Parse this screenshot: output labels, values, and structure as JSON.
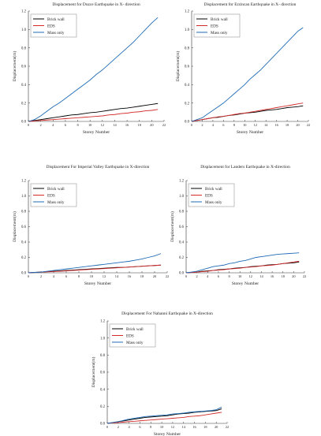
{
  "colors": {
    "Brick wall": "#000000",
    "EDS": "#d42a2a",
    "Mass only": "#1f6bb5"
  },
  "chart_data": [
    {
      "type": "line",
      "title": "Displacement for Duzce Earthquake in X- direction",
      "xlabel": "Storey Number",
      "ylabel": "Displacement(m)",
      "xlim": [
        0,
        22
      ],
      "ylim": [
        0,
        1.2
      ],
      "xticks": [
        0,
        2,
        4,
        6,
        8,
        10,
        12,
        14,
        16,
        18,
        20,
        22
      ],
      "yticks": [
        0,
        0.2,
        0.4,
        0.6,
        0.8,
        1.0,
        1.2
      ],
      "legend": "top-left",
      "grid": false,
      "x": [
        0,
        1,
        2,
        3,
        4,
        5,
        6,
        7,
        8,
        9,
        10,
        11,
        12,
        13,
        14,
        15,
        16,
        17,
        18,
        19,
        20,
        21
      ],
      "series": [
        {
          "name": "Brick wall",
          "values": [
            0,
            0.01,
            0.02,
            0.03,
            0.04,
            0.05,
            0.06,
            0.07,
            0.075,
            0.085,
            0.095,
            0.1,
            0.11,
            0.12,
            0.13,
            0.14,
            0.145,
            0.155,
            0.165,
            0.175,
            0.185,
            0.195
          ]
        },
        {
          "name": "EDS",
          "values": [
            0,
            0.005,
            0.01,
            0.015,
            0.02,
            0.025,
            0.03,
            0.035,
            0.04,
            0.045,
            0.05,
            0.055,
            0.06,
            0.07,
            0.075,
            0.085,
            0.09,
            0.1,
            0.105,
            0.115,
            0.12,
            0.13
          ]
        },
        {
          "name": "Mass only",
          "values": [
            0,
            0.02,
            0.06,
            0.11,
            0.16,
            0.2,
            0.25,
            0.3,
            0.35,
            0.4,
            0.45,
            0.51,
            0.56,
            0.62,
            0.68,
            0.74,
            0.8,
            0.86,
            0.93,
            1.0,
            1.07,
            1.13
          ]
        }
      ]
    },
    {
      "type": "line",
      "title": "Displacement for Erzincan Earthquake in X- direction",
      "xlabel": "Storey Number",
      "ylabel": "Displacement(m)",
      "xlim": [
        0,
        22
      ],
      "ylim": [
        0,
        1.2
      ],
      "xticks": [
        0,
        2,
        4,
        6,
        8,
        10,
        12,
        14,
        16,
        18,
        20,
        22
      ],
      "yticks": [
        0,
        0.2,
        0.4,
        0.6,
        0.8,
        1.0,
        1.2
      ],
      "legend": "top-left",
      "grid": false,
      "x": [
        0,
        1,
        2,
        3,
        4,
        5,
        6,
        7,
        8,
        9,
        10,
        11,
        12,
        13,
        14,
        15,
        16,
        17,
        18,
        19,
        20,
        21
      ],
      "series": [
        {
          "name": "Brick wall",
          "values": [
            0,
            0.01,
            0.02,
            0.03,
            0.04,
            0.045,
            0.055,
            0.065,
            0.07,
            0.08,
            0.09,
            0.095,
            0.1,
            0.11,
            0.12,
            0.125,
            0.13,
            0.14,
            0.15,
            0.155,
            0.16,
            0.17
          ]
        },
        {
          "name": "EDS",
          "values": [
            0,
            0.01,
            0.02,
            0.03,
            0.04,
            0.05,
            0.055,
            0.065,
            0.075,
            0.085,
            0.09,
            0.1,
            0.11,
            0.12,
            0.13,
            0.14,
            0.15,
            0.16,
            0.17,
            0.18,
            0.19,
            0.2
          ]
        },
        {
          "name": "Mass only",
          "values": [
            0,
            0.02,
            0.04,
            0.08,
            0.12,
            0.16,
            0.2,
            0.25,
            0.3,
            0.35,
            0.4,
            0.46,
            0.51,
            0.56,
            0.62,
            0.68,
            0.74,
            0.8,
            0.86,
            0.92,
            0.98,
            1.02
          ]
        }
      ]
    },
    {
      "type": "line",
      "title": "Displacement For Imperial Valley Earthquake in X-direction",
      "xlabel": "Storey Number",
      "ylabel": "Displacement(m)",
      "xlim": [
        0,
        22
      ],
      "ylim": [
        0,
        1.2
      ],
      "xticks": [
        0,
        2,
        4,
        6,
        8,
        10,
        12,
        14,
        16,
        18,
        20,
        22
      ],
      "yticks": [
        0,
        0.2,
        0.4,
        0.6,
        0.8,
        1.0,
        1.2
      ],
      "legend": "top-left",
      "grid": false,
      "x": [
        0,
        1,
        2,
        3,
        4,
        5,
        6,
        7,
        8,
        9,
        10,
        11,
        12,
        13,
        14,
        15,
        16,
        17,
        18,
        19,
        20,
        21
      ],
      "series": [
        {
          "name": "Brick wall",
          "values": [
            0,
            0.005,
            0.01,
            0.015,
            0.02,
            0.025,
            0.03,
            0.035,
            0.04,
            0.045,
            0.05,
            0.055,
            0.06,
            0.065,
            0.07,
            0.07,
            0.075,
            0.08,
            0.085,
            0.09,
            0.095,
            0.1
          ]
        },
        {
          "name": "EDS",
          "values": [
            0,
            0.004,
            0.008,
            0.012,
            0.016,
            0.02,
            0.025,
            0.03,
            0.035,
            0.04,
            0.045,
            0.05,
            0.055,
            0.06,
            0.065,
            0.07,
            0.075,
            0.08,
            0.085,
            0.09,
            0.095,
            0.1
          ]
        },
        {
          "name": "Mass only",
          "values": [
            0,
            0.005,
            0.01,
            0.02,
            0.03,
            0.04,
            0.05,
            0.06,
            0.07,
            0.08,
            0.09,
            0.1,
            0.11,
            0.12,
            0.13,
            0.14,
            0.15,
            0.165,
            0.18,
            0.2,
            0.22,
            0.25
          ]
        }
      ]
    },
    {
      "type": "line",
      "title": "Displacement for Landers Earthquake in X-direction",
      "xlabel": "Storey Number",
      "ylabel": "Displacement(m)",
      "xlim": [
        0,
        22
      ],
      "ylim": [
        0,
        1.2
      ],
      "xticks": [
        0,
        2,
        4,
        6,
        8,
        10,
        12,
        14,
        16,
        18,
        20,
        22
      ],
      "yticks": [
        0,
        0.2,
        0.4,
        0.6,
        0.8,
        1.0,
        1.2
      ],
      "legend": "top-left",
      "grid": false,
      "x": [
        0,
        1,
        2,
        3,
        4,
        5,
        6,
        7,
        8,
        9,
        10,
        11,
        12,
        13,
        14,
        15,
        16,
        17,
        18,
        19,
        20,
        21
      ],
      "series": [
        {
          "name": "Brick wall",
          "values": [
            0,
            0.005,
            0.01,
            0.02,
            0.025,
            0.03,
            0.04,
            0.045,
            0.05,
            0.06,
            0.065,
            0.07,
            0.08,
            0.085,
            0.09,
            0.1,
            0.105,
            0.11,
            0.12,
            0.125,
            0.13,
            0.14
          ]
        },
        {
          "name": "EDS",
          "values": [
            0,
            0.005,
            0.01,
            0.015,
            0.02,
            0.03,
            0.035,
            0.04,
            0.05,
            0.055,
            0.06,
            0.07,
            0.075,
            0.08,
            0.09,
            0.095,
            0.1,
            0.11,
            0.12,
            0.13,
            0.14,
            0.15
          ]
        },
        {
          "name": "Mass only",
          "values": [
            0,
            0.01,
            0.02,
            0.04,
            0.06,
            0.08,
            0.09,
            0.1,
            0.12,
            0.13,
            0.15,
            0.16,
            0.18,
            0.2,
            0.21,
            0.22,
            0.23,
            0.24,
            0.245,
            0.25,
            0.255,
            0.26
          ]
        }
      ]
    },
    {
      "type": "line",
      "title": "Displacement For Nahanni Earthquake in X-direction",
      "xlabel": "Storey Number",
      "ylabel": "Displacement(m)",
      "xlim": [
        0,
        22
      ],
      "ylim": [
        0,
        1.2
      ],
      "xticks": [
        0,
        2,
        4,
        6,
        8,
        10,
        12,
        14,
        16,
        18,
        20,
        22
      ],
      "yticks": [
        0,
        0.2,
        0.4,
        0.6,
        0.8,
        1.0,
        1.2
      ],
      "legend": "top-left",
      "grid": false,
      "x": [
        0,
        1,
        2,
        3,
        4,
        5,
        6,
        7,
        8,
        9,
        10,
        11,
        12,
        13,
        14,
        15,
        16,
        17,
        18,
        19,
        20,
        21
      ],
      "series": [
        {
          "name": "Brick wall",
          "values": [
            0,
            0.01,
            0.02,
            0.03,
            0.04,
            0.05,
            0.06,
            0.07,
            0.075,
            0.08,
            0.085,
            0.09,
            0.1,
            0.11,
            0.115,
            0.12,
            0.13,
            0.135,
            0.14,
            0.145,
            0.15,
            0.17
          ]
        },
        {
          "name": "EDS",
          "values": [
            0,
            0.005,
            0.01,
            0.015,
            0.02,
            0.025,
            0.03,
            0.035,
            0.04,
            0.045,
            0.05,
            0.055,
            0.06,
            0.065,
            0.07,
            0.08,
            0.085,
            0.09,
            0.1,
            0.11,
            0.12,
            0.13
          ]
        },
        {
          "name": "Mass only",
          "values": [
            0,
            0.01,
            0.02,
            0.035,
            0.05,
            0.06,
            0.07,
            0.08,
            0.085,
            0.09,
            0.095,
            0.1,
            0.11,
            0.115,
            0.12,
            0.13,
            0.135,
            0.14,
            0.145,
            0.15,
            0.16,
            0.19
          ]
        }
      ]
    }
  ]
}
